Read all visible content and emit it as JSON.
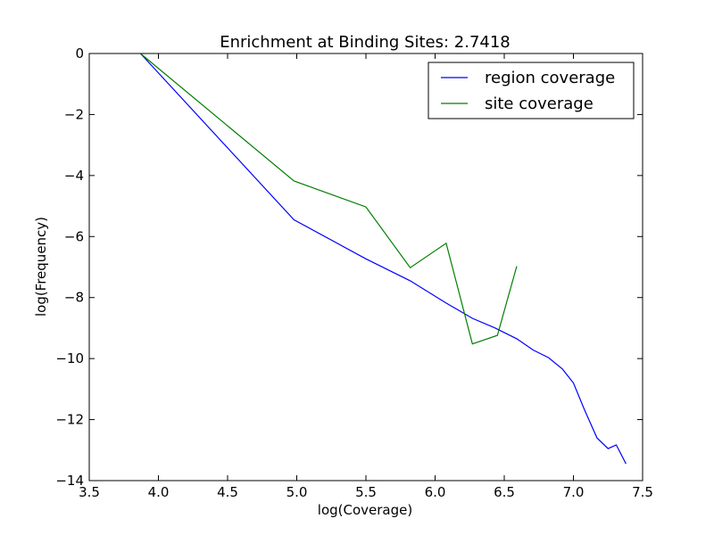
{
  "chart_data": {
    "type": "line",
    "title": "Enrichment at Binding Sites: 2.7418",
    "xlabel": "log(Coverage)",
    "ylabel": "log(Frequency)",
    "xlim": [
      3.5,
      7.5
    ],
    "ylim": [
      -14,
      0
    ],
    "xticks": [
      3.5,
      4.0,
      4.5,
      5.0,
      5.5,
      6.0,
      6.5,
      7.0,
      7.5
    ],
    "xtick_labels": [
      "3.5",
      "4.0",
      "4.5",
      "5.0",
      "5.5",
      "6.0",
      "6.5",
      "7.0",
      "7.5"
    ],
    "yticks": [
      0,
      -2,
      -4,
      -6,
      -8,
      -10,
      -12,
      -14
    ],
    "ytick_labels": [
      "0",
      "−2",
      "−4",
      "−6",
      "−8",
      "−10",
      "−12",
      "−14"
    ],
    "grid": false,
    "legend_position": "top-right",
    "series": [
      {
        "name": "region coverage",
        "color": "#0000ff",
        "points": [
          [
            3.87,
            0.0
          ],
          [
            4.98,
            -5.45
          ],
          [
            5.5,
            -6.73
          ],
          [
            5.82,
            -7.45
          ],
          [
            6.08,
            -8.18
          ],
          [
            6.27,
            -8.68
          ],
          [
            6.43,
            -8.99
          ],
          [
            6.59,
            -9.35
          ],
          [
            6.71,
            -9.72
          ],
          [
            6.82,
            -9.97
          ],
          [
            6.92,
            -10.34
          ],
          [
            7.0,
            -10.8
          ],
          [
            7.08,
            -11.68
          ],
          [
            7.17,
            -12.6
          ],
          [
            7.25,
            -12.95
          ],
          [
            7.31,
            -12.83
          ],
          [
            7.38,
            -13.45
          ]
        ]
      },
      {
        "name": "site coverage",
        "color": "#008000",
        "points": [
          [
            3.87,
            0.0
          ],
          [
            4.98,
            -4.18
          ],
          [
            5.5,
            -5.03
          ],
          [
            5.82,
            -7.02
          ],
          [
            6.08,
            -6.22
          ],
          [
            6.27,
            -9.52
          ],
          [
            6.45,
            -9.24
          ],
          [
            6.59,
            -6.97
          ]
        ]
      }
    ]
  }
}
